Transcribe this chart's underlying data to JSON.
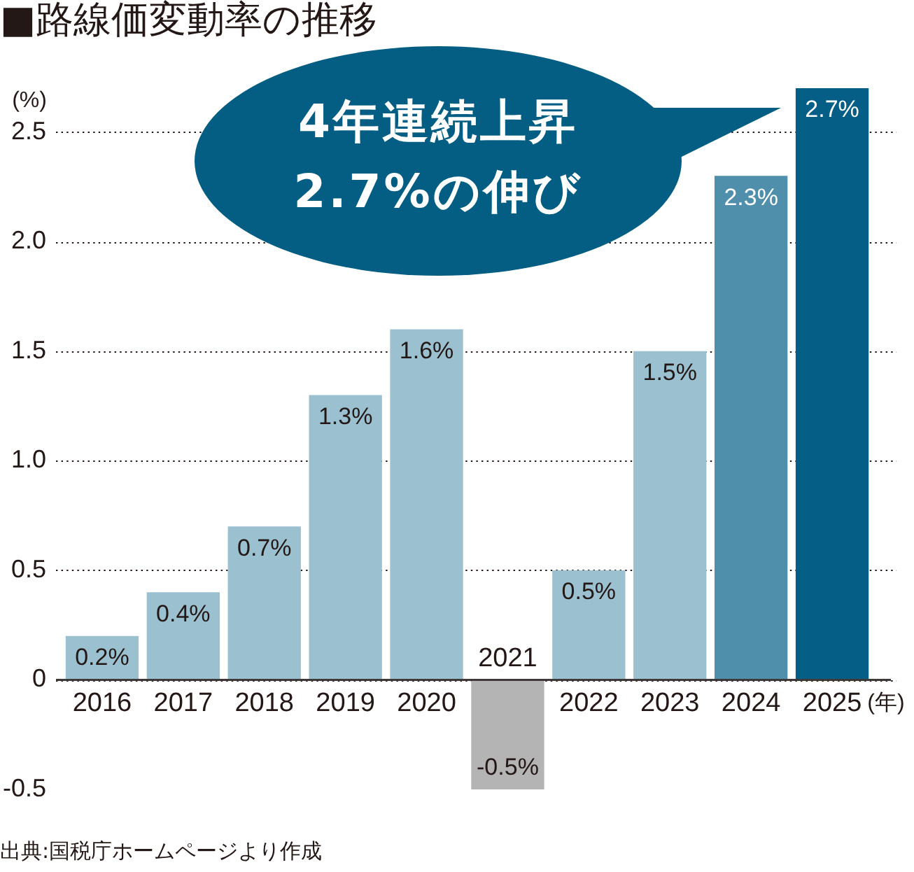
{
  "chart_data": {
    "type": "bar",
    "title": "■路線価変動率の推移",
    "ylabel": "(%)",
    "xlabel": "(年)",
    "categories": [
      "2016",
      "2017",
      "2018",
      "2019",
      "2020",
      "2021",
      "2022",
      "2023",
      "2024",
      "2025"
    ],
    "values": [
      0.2,
      0.4,
      0.7,
      1.3,
      1.6,
      -0.5,
      0.5,
      1.5,
      2.3,
      2.7
    ],
    "colors": [
      "#9bc0d0",
      "#9bc0d0",
      "#9bc0d0",
      "#9bc0d0",
      "#9bc0d0",
      "#b4b4b4",
      "#9bc0d0",
      "#9bc0d0",
      "#4f8fab",
      "#045e85"
    ],
    "value_labels": [
      "0.2%",
      "0.4%",
      "0.7%",
      "1.3%",
      "1.6%",
      "-0.5%",
      "0.5%",
      "1.5%",
      "2.3%",
      "2.7%"
    ],
    "ylim": [
      -0.5,
      2.7
    ],
    "yticks": [
      -0.5,
      0,
      0.5,
      {
        "value": 1,
        "label": "1.0"
      },
      1.5,
      {
        "value": 2,
        "label": "2.0"
      },
      2.5
    ],
    "grid": "y",
    "legend": false,
    "annotations": [
      "4年連続上昇",
      "2.7%の伸び",
      "出典:国税庁ホームページより作成"
    ]
  }
}
